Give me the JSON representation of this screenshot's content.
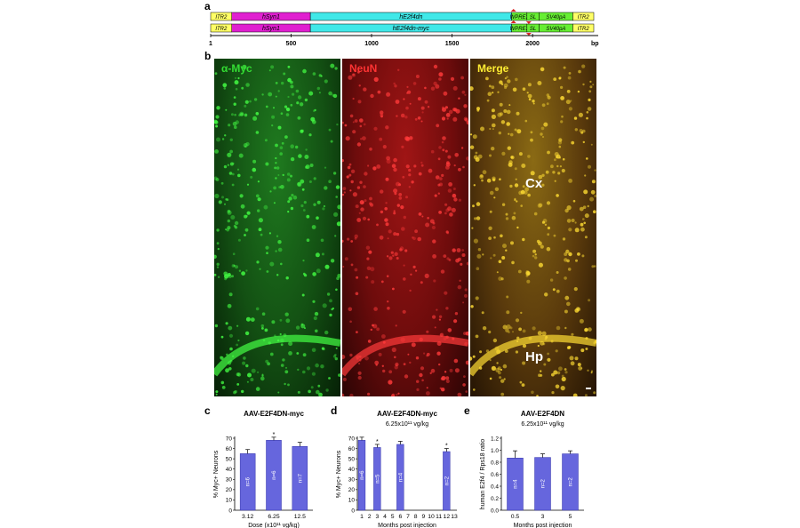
{
  "panels": {
    "a": "a",
    "b": "b",
    "c": "c",
    "d": "d",
    "e": "e"
  },
  "construct": {
    "rows": [
      {
        "segments": [
          {
            "label": "ITR2",
            "start": 1,
            "end": 132,
            "color": "#ffff66"
          },
          {
            "label": "hSyn1",
            "start": 132,
            "end": 620,
            "color": "#e020d0"
          },
          {
            "label": "hE2f4dn",
            "start": 620,
            "end": 1870,
            "color": "#40e8e8"
          },
          {
            "label": "WPRE3",
            "start": 1870,
            "end": 1965,
            "color": "#66ee33"
          },
          {
            "label": "SL",
            "start": 1965,
            "end": 2040,
            "color": "#66ee33"
          },
          {
            "label": "SV40pA",
            "start": 2040,
            "end": 2250,
            "color": "#66ee33"
          },
          {
            "label": "ITR2",
            "start": 2250,
            "end": 2380,
            "color": "#ffff66"
          }
        ]
      },
      {
        "segments": [
          {
            "label": "ITR2",
            "start": 1,
            "end": 132,
            "color": "#ffff66"
          },
          {
            "label": "hSyn1",
            "start": 132,
            "end": 620,
            "color": "#e020d0"
          },
          {
            "label": "hE2f4dn-myc",
            "start": 620,
            "end": 1870,
            "color": "#40e8e8"
          },
          {
            "label": "WPRE3",
            "start": 1870,
            "end": 1965,
            "color": "#66ee33"
          },
          {
            "label": "SL",
            "start": 1965,
            "end": 2040,
            "color": "#66ee33"
          },
          {
            "label": "SV40pA",
            "start": 2040,
            "end": 2250,
            "color": "#66ee33"
          },
          {
            "label": "ITR2",
            "start": 2250,
            "end": 2380,
            "color": "#ffff66"
          }
        ]
      }
    ],
    "axis": {
      "range": [
        1,
        2380
      ],
      "ticks": [
        1,
        500,
        1000,
        1500,
        2000
      ],
      "unit": "bp"
    }
  },
  "micrographs": [
    {
      "title": "α-Myc",
      "title_color": "#33dd33",
      "regions": []
    },
    {
      "title": "NeuN",
      "title_color": "#ff3333",
      "regions": []
    },
    {
      "title": "Merge",
      "title_color": "#ffee33",
      "regions": [
        "Cx",
        "Hp"
      ]
    }
  ],
  "bar_color": "#6666dd",
  "chart_data": [
    {
      "type": "bar",
      "title": "AAV-E2F4DN-myc",
      "subtitle": "",
      "categories": [
        "3.12",
        "6.25",
        "12.5"
      ],
      "values": [
        55,
        68,
        62
      ],
      "errors": [
        4,
        3,
        4
      ],
      "n_labels": [
        "n=6",
        "n=6",
        "n=7"
      ],
      "significant": [
        false,
        true,
        false
      ],
      "ylabel": "% Myc+ Neurons",
      "xlabel": "Dose (x10¹¹ vg/kg)",
      "ylim": [
        0,
        70
      ],
      "yticks": [
        "0",
        "10",
        "20",
        "30",
        "40",
        "50",
        "60",
        "70"
      ]
    },
    {
      "type": "bar",
      "title": "AAV-E2F4DN-myc",
      "subtitle": "6.25x10¹¹ vg/kg",
      "x": [
        1,
        3,
        6,
        12
      ],
      "values": [
        68,
        61,
        64,
        57
      ],
      "errors": [
        3,
        3,
        3,
        3
      ],
      "n_labels": [
        "n=6",
        "n=5",
        "n=4",
        "n=2"
      ],
      "significant": [
        false,
        true,
        false,
        true
      ],
      "xticks": [
        "1",
        "2",
        "3",
        "4",
        "5",
        "6",
        "7",
        "8",
        "9",
        "10",
        "11",
        "12",
        "13"
      ],
      "ylabel": "% Myc+ Neurons",
      "xlabel": "Months post injection",
      "ylim": [
        0,
        70
      ],
      "yticks": [
        "0",
        "10",
        "20",
        "30",
        "40",
        "50",
        "60",
        "70"
      ]
    },
    {
      "type": "bar",
      "title": "AAV-E2F4DN",
      "subtitle": "6.25x10¹¹ vg/kg",
      "categories": [
        "0.5",
        "3",
        "5"
      ],
      "values": [
        0.87,
        0.88,
        0.94
      ],
      "errors": [
        0.12,
        0.06,
        0.05
      ],
      "n_labels": [
        "n=4",
        "n=2",
        "n=2"
      ],
      "significant": [
        false,
        false,
        false
      ],
      "ylabel": "human E2f4 / Rps18 ratio",
      "xlabel": "Months post injection",
      "ylim": [
        0,
        1.2
      ],
      "yticks": [
        "0.0",
        "0.2",
        "0.4",
        "0.6",
        "0.8",
        "1.0",
        "1.2"
      ]
    }
  ]
}
